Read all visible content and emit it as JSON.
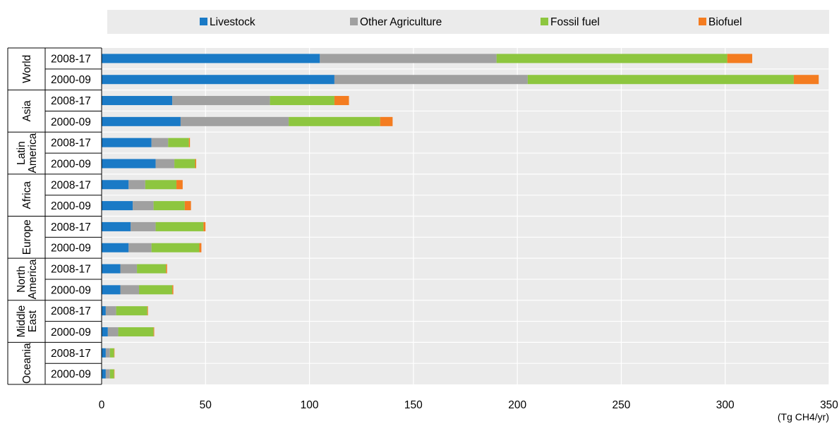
{
  "chart_data": {
    "type": "bar",
    "orientation": "horizontal",
    "stacked": true,
    "xlabel": "(Tg CH4/yr)",
    "xlim": [
      0,
      350
    ],
    "xticks": [
      0,
      50,
      100,
      150,
      200,
      250,
      300,
      350
    ],
    "grid": "vertical",
    "legend_position": "top",
    "regions": [
      "World",
      "Asia",
      "Latin America",
      "Africa",
      "Europe",
      "North America",
      "Middle East",
      "Oceania"
    ],
    "region_label_lines": [
      [
        "World"
      ],
      [
        "Asia"
      ],
      [
        "Latin",
        "America"
      ],
      [
        "Africa"
      ],
      [
        "Europe"
      ],
      [
        "North",
        "America"
      ],
      [
        "Middle",
        "East"
      ],
      [
        "Oceania"
      ]
    ],
    "periods": [
      "2008-17",
      "2000-09"
    ],
    "categories": [
      "World 2008-17",
      "World 2000-09",
      "Asia 2008-17",
      "Asia 2000-09",
      "Latin America 2008-17",
      "Latin America 2000-09",
      "Africa 2008-17",
      "Africa 2000-09",
      "Europe 2008-17",
      "Europe 2000-09",
      "North America 2008-17",
      "North America 2000-09",
      "Middle East 2008-17",
      "Middle East 2000-09",
      "Oceania 2008-17",
      "Oceania 2000-09"
    ],
    "series": [
      {
        "name": "Livestock",
        "color": "#1a7ac6",
        "values": [
          105,
          112,
          34,
          38,
          24,
          26,
          13,
          15,
          14,
          13,
          9,
          9,
          2,
          3,
          2,
          2
        ]
      },
      {
        "name": "Other Agriculture",
        "color": "#a0a0a0",
        "values": [
          85,
          93,
          47,
          52,
          8,
          9,
          8,
          10,
          12,
          11,
          8,
          9,
          5,
          5,
          2,
          2
        ]
      },
      {
        "name": "Fossil fuel",
        "color": "#8dc63f",
        "values": [
          111,
          128,
          31,
          44,
          10,
          10,
          15,
          15,
          23,
          23,
          14,
          16,
          15,
          17,
          2,
          2
        ]
      },
      {
        "name": "Biofuel",
        "color": "#f47c20",
        "values": [
          12,
          12,
          7,
          6,
          0.5,
          0.5,
          3,
          3,
          1,
          1,
          0.5,
          0.5,
          0.3,
          0.3,
          0.2,
          0.2
        ]
      }
    ]
  }
}
